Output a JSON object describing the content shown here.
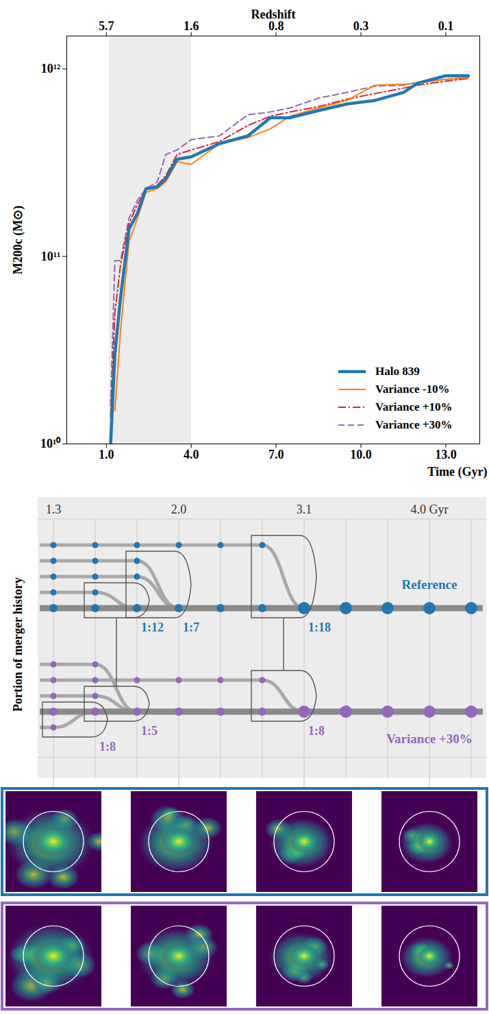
{
  "chart_data": {
    "type": "line",
    "x_label": "Time (Gyr)",
    "y_label": "M200c (M⊙)",
    "x2_label": "Redshift",
    "x": [
      1.15,
      1.3,
      1.5,
      1.8,
      2.1,
      2.4,
      2.8,
      3.1,
      3.5,
      4.0,
      5.0,
      6.0,
      6.8,
      7.5,
      8.5,
      9.5,
      10.5,
      11.5,
      12.0,
      13.0,
      13.8
    ],
    "series": [
      {
        "name": "Halo 839",
        "color": "#1f77b4",
        "line_style": "solid",
        "values": [
          10000000000.0,
          30000000000.0,
          60000000000.0,
          140000000000.0,
          170000000000.0,
          230000000000.0,
          235000000000.0,
          260000000000.0,
          330000000000.0,
          340000000000.0,
          400000000000.0,
          440000000000.0,
          550000000000.0,
          550000000000.0,
          600000000000.0,
          650000000000.0,
          680000000000.0,
          750000000000.0,
          840000000000.0,
          920000000000.0,
          920000000000.0
        ]
      },
      {
        "name": "Variance -10%",
        "color": "#ff7f0e",
        "line_style": "solid",
        "values": [
          null,
          15000000000.0,
          40000000000.0,
          120000000000.0,
          160000000000.0,
          220000000000.0,
          230000000000.0,
          250000000000.0,
          320000000000.0,
          310000000000.0,
          400000000000.0,
          430000000000.0,
          480000000000.0,
          560000000000.0,
          620000000000.0,
          680000000000.0,
          820000000000.0,
          830000000000.0,
          840000000000.0,
          880000000000.0,
          900000000000.0
        ]
      },
      {
        "name": "Variance +10%",
        "color": "#d62728",
        "line_style": "dashdot",
        "values": [
          14000000000.0,
          50000000000.0,
          90000000000.0,
          150000000000.0,
          190000000000.0,
          230000000000.0,
          240000000000.0,
          270000000000.0,
          350000000000.0,
          370000000000.0,
          410000000000.0,
          500000000000.0,
          560000000000.0,
          590000000000.0,
          630000000000.0,
          690000000000.0,
          740000000000.0,
          790000000000.0,
          820000000000.0,
          860000000000.0,
          890000000000.0
        ]
      },
      {
        "name": "Variance +30%",
        "color": "#9467bd",
        "line_style": "dashed",
        "values": [
          16000000000.0,
          95000000000.0,
          95000000000.0,
          160000000000.0,
          200000000000.0,
          230000000000.0,
          250000000000.0,
          350000000000.0,
          370000000000.0,
          420000000000.0,
          440000000000.0,
          570000000000.0,
          590000000000.0,
          620000000000.0,
          700000000000.0,
          750000000000.0,
          810000000000.0,
          820000000000.0,
          850000000000.0,
          880000000000.0,
          900000000000.0
        ]
      }
    ],
    "xlim": [
      -0.4,
      14.2
    ],
    "ylim": [
      10000000000.0,
      1500000000000.0
    ],
    "log": "y",
    "xticks": [
      {
        "value": 1,
        "label": "1.0"
      },
      {
        "value": 4,
        "label": "4.0"
      },
      {
        "value": 7,
        "label": "7.0"
      },
      {
        "value": 10,
        "label": "10.0"
      },
      {
        "value": 13,
        "label": "13.0"
      }
    ],
    "x2ticks": [
      {
        "value": 1,
        "label": "5.7"
      },
      {
        "value": 4,
        "label": "1.6"
      },
      {
        "value": 7,
        "label": "0.8"
      },
      {
        "value": 10,
        "label": "0.3"
      },
      {
        "value": 13,
        "label": "0.1"
      }
    ],
    "yticks": [
      {
        "value": 10000000000.0,
        "label": "10¹⁰"
      },
      {
        "value": 100000000000.0,
        "label": "10¹¹"
      },
      {
        "value": 1000000000000.0,
        "label": "10¹²"
      }
    ],
    "highlight": [
      1.1,
      4.0
    ],
    "grid": false,
    "legend": "lower right"
  },
  "merger_diagram": {
    "y_label": "Portion of merger history",
    "columns": 11,
    "time_labels": [
      {
        "col": 0,
        "label": "1.3"
      },
      {
        "col": 3,
        "label": "2.0"
      },
      {
        "col": 6,
        "label": "3.1"
      },
      {
        "col": 9,
        "label": "4.0 Gyr"
      }
    ],
    "trees": [
      {
        "name": "Reference",
        "color": "#1f77b4",
        "branches": [
          {
            "lane": 4,
            "start": 0,
            "merge": 6,
            "ratio": "1:18"
          },
          {
            "lane": 3,
            "start": 0,
            "merge": 3,
            "ratio": "1:7"
          },
          {
            "lane": 2,
            "start": 0,
            "merge": 3
          },
          {
            "lane": 1,
            "start": 0,
            "merge": 2,
            "ratio": "1:12"
          }
        ]
      },
      {
        "name": "Variance +30%",
        "color": "#9467bd",
        "branches": [
          {
            "lane": 3,
            "start": 0,
            "merge": 2
          },
          {
            "lane": 2,
            "start": 0,
            "merge": 6,
            "ratio": "1:8"
          },
          {
            "lane": 1,
            "start": 0,
            "merge": 2,
            "ratio": "1:5"
          },
          {
            "lane": -1,
            "start": 0,
            "merge": 1,
            "ratio": "1:8"
          }
        ]
      }
    ],
    "snapshots": {
      "columns": [
        0,
        3,
        6,
        9
      ]
    }
  }
}
